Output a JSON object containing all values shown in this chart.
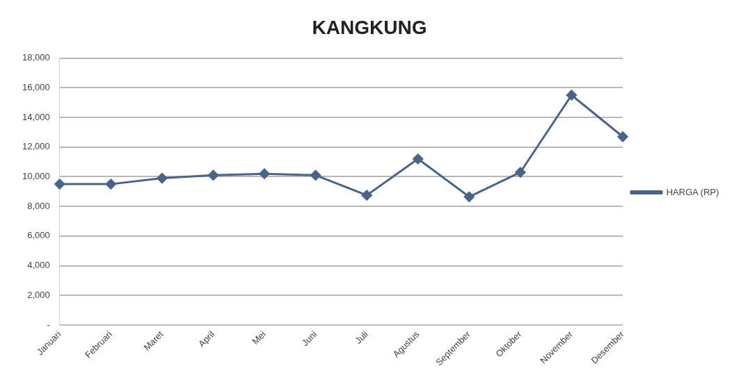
{
  "chart_data": {
    "type": "line",
    "title": "KANGKUNG",
    "categories": [
      "Januari",
      "Februari",
      "Maret",
      "April",
      "Mei",
      "Juni",
      "Juli",
      "Agustus",
      "September",
      "Oktober",
      "November",
      "Desember"
    ],
    "series": [
      {
        "name": "HARGA (RP)",
        "color": "#4a6489",
        "values": [
          9500,
          9500,
          9900,
          10100,
          10200,
          10100,
          8750,
          11200,
          8650,
          10300,
          15500,
          12700
        ]
      }
    ],
    "ylim": [
      0,
      18000
    ],
    "yticks": [
      {
        "value": 0,
        "label": "-"
      },
      {
        "value": 2000,
        "label": "2,000"
      },
      {
        "value": 4000,
        "label": "4,000"
      },
      {
        "value": 6000,
        "label": "6,000"
      },
      {
        "value": 8000,
        "label": "8,000"
      },
      {
        "value": 10000,
        "label": "10,000"
      },
      {
        "value": 12000,
        "label": "12,000"
      },
      {
        "value": 14000,
        "label": "14,000"
      },
      {
        "value": 16000,
        "label": "16,000"
      },
      {
        "value": 18000,
        "label": "18,000"
      }
    ],
    "grid": "y",
    "legend": "right",
    "marker": "diamond",
    "line_style": "solid"
  }
}
